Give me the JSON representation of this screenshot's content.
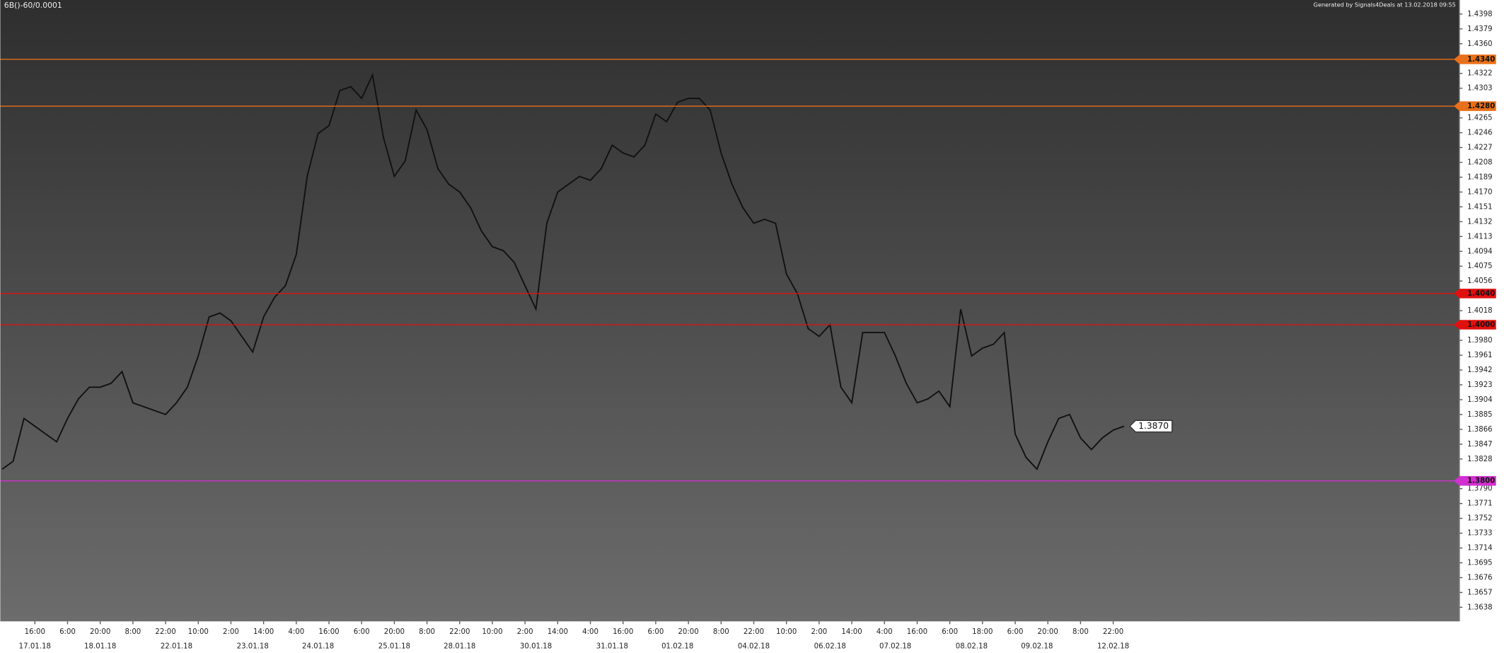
{
  "chart_data": {
    "type": "line",
    "title": "6B()-60/0.0001",
    "subtitle": "Generated by Signals4Deals at 13.02.2018 09:55",
    "categories": [
      null,
      null,
      null,
      "16:00",
      null,
      null,
      "6:00",
      null,
      null,
      "20:00",
      null,
      null,
      "8:00",
      null,
      null,
      "22:00",
      null,
      null,
      "10:00",
      null,
      null,
      "2:00",
      null,
      null,
      "14:00",
      null,
      null,
      "4:00",
      null,
      null,
      "16:00",
      null,
      null,
      "6:00",
      null,
      null,
      "20:00",
      null,
      null,
      "8:00",
      null,
      null,
      "22:00",
      null,
      null,
      "10:00",
      null,
      null,
      "2:00",
      null,
      null,
      "14:00",
      null,
      null,
      "4:00",
      null,
      null,
      "16:00",
      null,
      null,
      "6:00",
      null,
      null,
      "20:00",
      null,
      null,
      "8:00",
      null,
      null,
      "22:00",
      null,
      null,
      "10:00",
      null,
      null,
      "2:00",
      null,
      null,
      "14:00",
      null,
      null,
      "4:00",
      null,
      null,
      "16:00",
      null,
      null,
      "6:00",
      null,
      null,
      "18:00",
      null,
      null,
      "6:00",
      null,
      null,
      "20:00",
      null,
      null,
      "8:00",
      null,
      null,
      "22:00",
      null
    ],
    "dates": [
      null,
      null,
      null,
      "17.01.18",
      null,
      null,
      null,
      null,
      null,
      "18.01.18",
      null,
      null,
      null,
      null,
      null,
      null,
      "22.01.18",
      null,
      null,
      null,
      null,
      null,
      null,
      "23.01.18",
      null,
      null,
      null,
      null,
      null,
      "24.01.18",
      null,
      null,
      null,
      null,
      null,
      null,
      "25.01.18",
      null,
      null,
      null,
      null,
      null,
      "28.01.18",
      null,
      null,
      null,
      null,
      null,
      null,
      "30.01.18",
      null,
      null,
      null,
      null,
      null,
      null,
      "31.01.18",
      null,
      null,
      null,
      null,
      null,
      "01.02.18",
      null,
      null,
      null,
      null,
      null,
      null,
      "04.02.18",
      null,
      null,
      null,
      null,
      null,
      null,
      "06.02.18",
      null,
      null,
      null,
      null,
      null,
      "07.02.18",
      null,
      null,
      null,
      null,
      null,
      null,
      "08.02.18",
      null,
      null,
      null,
      null,
      null,
      "09.02.18",
      null,
      null,
      null,
      null,
      null,
      null,
      "12.02.18",
      null
    ],
    "series": [
      {
        "name": "6B",
        "color": "#111111",
        "values": [
          1.3815,
          1.3825,
          1.388,
          1.387,
          1.386,
          1.385,
          1.388,
          1.3905,
          1.392,
          1.392,
          1.3925,
          1.394,
          1.39,
          1.3895,
          1.389,
          1.3885,
          1.39,
          1.392,
          1.396,
          1.401,
          1.4015,
          1.4005,
          1.3985,
          1.3965,
          1.401,
          1.4035,
          1.405,
          1.409,
          1.419,
          1.4245,
          1.4255,
          1.43,
          1.4305,
          1.429,
          1.432,
          1.424,
          1.419,
          1.421,
          1.4275,
          1.425,
          1.42,
          1.418,
          1.417,
          1.415,
          1.412,
          1.41,
          1.4095,
          1.408,
          1.405,
          1.402,
          1.413,
          1.417,
          1.418,
          1.419,
          1.4185,
          1.42,
          1.423,
          1.422,
          1.4215,
          1.423,
          1.427,
          1.426,
          1.4285,
          1.429,
          1.429,
          1.4275,
          1.422,
          1.418,
          1.415,
          1.413,
          1.4135,
          1.413,
          1.4065,
          1.404,
          1.3995,
          1.3985,
          1.4,
          1.392,
          1.39,
          1.399,
          1.399,
          1.399,
          1.396,
          1.3925,
          1.39,
          1.3905,
          1.3915,
          1.3895,
          1.402,
          1.396,
          1.397,
          1.3975,
          1.399,
          1.386,
          1.383,
          1.3815,
          1.385,
          1.388,
          1.3885,
          1.3855,
          1.384,
          1.3855,
          1.3865,
          1.387
        ]
      }
    ],
    "ylim": [
      1.362,
      1.4416
    ],
    "yticks": [
      1.4398,
      1.4379,
      {
        "value": 1.436,
        "label": "1.4360"
      },
      1.4322,
      1.4303,
      1.4265,
      1.4246,
      1.4227,
      1.4208,
      1.4189,
      {
        "value": 1.417,
        "label": "1.4170"
      },
      1.4151,
      1.4132,
      1.4113,
      1.4094,
      1.4075,
      1.4056,
      1.4018,
      {
        "value": 1.398,
        "label": "1.3980"
      },
      1.3961,
      1.3942,
      1.3923,
      1.3904,
      1.3885,
      1.3866,
      1.3847,
      1.3828,
      {
        "value": 1.379,
        "label": "1.3790"
      },
      1.3771,
      1.3752,
      1.3733,
      1.3714,
      1.3695,
      1.3676,
      1.3657,
      1.3638
    ],
    "levels": [
      {
        "value": 1.434,
        "label": "1.4340",
        "color": "#e8701a"
      },
      {
        "value": 1.428,
        "label": "1.4280",
        "color": "#e8701a"
      },
      {
        "value": 1.404,
        "label": "1.4040",
        "color": "#e01010"
      },
      {
        "value": 1.4,
        "label": "1.4000",
        "color": "#e01010"
      },
      {
        "value": 1.38,
        "label": "1.3800",
        "color": "#d030d0"
      }
    ],
    "last_price": {
      "value": 1.387,
      "label": "1.3870"
    }
  }
}
